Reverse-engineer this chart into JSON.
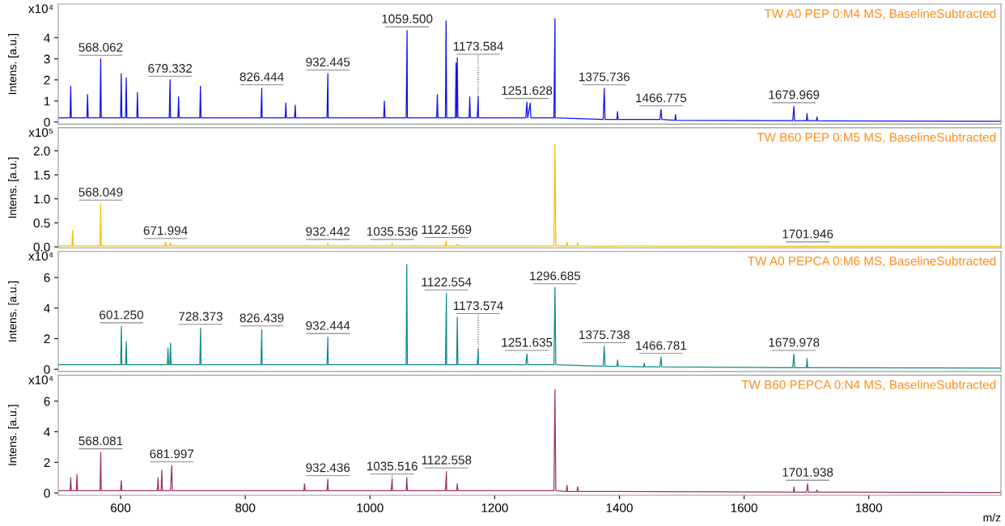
{
  "chart_data": [
    {
      "type": "line",
      "title": "TW A0 PEP 0:M4 MS, BaselineSubtracted",
      "ylabel": "Intens. [a.u.]",
      "tick_labels": "y",
      "xlim": [
        500,
        2012
      ],
      "ylim": [
        -0.1,
        5.6
      ],
      "yticks": [
        0,
        1,
        2,
        3,
        4
      ],
      "annotations": [
        "x10⁴",
        {
          "text": "568.062",
          "x": 568.062,
          "y": 3.0
        },
        {
          "text": "679.332",
          "x": 679.332,
          "y": 2.0
        },
        {
          "text": "826.444",
          "x": 826.444,
          "y": 1.6
        },
        {
          "text": "932.445",
          "x": 932.445,
          "y": 2.3
        },
        {
          "text": "1059.500",
          "x": 1059.5,
          "y": 4.35
        },
        {
          "text": "1173.584",
          "x": 1173.584,
          "y": 1.2
        },
        {
          "text": "1251.628",
          "x": 1251.628,
          "y": 0.95
        },
        {
          "text": "1375.736",
          "x": 1375.736,
          "y": 1.6
        },
        {
          "text": "1466.775",
          "x": 1466.775,
          "y": 0.6
        },
        {
          "text": "1679.969",
          "x": 1679.969,
          "y": 0.75
        }
      ],
      "x": [
        500,
        519,
        520,
        521,
        546,
        547,
        548,
        567,
        568.062,
        569,
        600,
        601,
        602,
        608,
        609,
        610,
        626,
        627,
        628,
        678,
        679.332,
        680,
        692,
        693,
        694,
        727,
        728,
        729,
        825,
        826.444,
        827,
        864,
        865,
        866,
        879,
        880,
        881,
        931,
        932.445,
        933,
        1022,
        1023,
        1024,
        1058,
        1059.5,
        1060,
        1107,
        1108,
        1109,
        1121,
        1122,
        1123,
        1137,
        1138,
        1139,
        1140,
        1141,
        1159,
        1160,
        1161,
        1172,
        1173.584,
        1174,
        1250,
        1251.628,
        1253,
        1257,
        1258,
        1295,
        1296.685,
        1297,
        1374,
        1375.736,
        1377,
        1396,
        1397,
        1398,
        1465,
        1466.775,
        1468,
        1489,
        1490,
        1491,
        1678,
        1679.969,
        1681,
        1700,
        1701,
        1702,
        1716,
        1717,
        1718,
        2012
      ],
      "series": [
        {
          "color": "#1010f0",
          "values": [
            0.2,
            0.2,
            1.7,
            0.2,
            0.2,
            1.3,
            0.2,
            0.2,
            3.0,
            0.2,
            0.2,
            2.3,
            0.2,
            0.2,
            2.1,
            0.2,
            0.2,
            1.4,
            0.2,
            0.2,
            2.0,
            0.2,
            0.2,
            1.2,
            0.2,
            0.2,
            1.7,
            0.2,
            0.2,
            1.6,
            0.2,
            0.2,
            0.9,
            0.2,
            0.2,
            0.8,
            0.2,
            0.2,
            2.3,
            0.2,
            0.2,
            1.0,
            0.2,
            0.2,
            4.35,
            0.2,
            0.2,
            1.3,
            0.2,
            0.2,
            4.8,
            0.2,
            0.2,
            2.8,
            0.2,
            3.05,
            0.2,
            0.2,
            1.2,
            0.2,
            0.2,
            1.2,
            0.2,
            0.2,
            0.95,
            0.2,
            0.9,
            0.2,
            0.2,
            4.9,
            0.2,
            0.12,
            1.6,
            0.12,
            0.12,
            0.5,
            0.12,
            0.12,
            0.6,
            0.12,
            0.08,
            0.35,
            0.08,
            0.06,
            0.75,
            0.06,
            0.06,
            0.4,
            0.06,
            0.06,
            0.25,
            0.06,
            0.04
          ]
        }
      ]
    },
    {
      "type": "line",
      "title": "TW B60 PEP 0:M5 MS, BaselineSubtracted",
      "ylabel": "Intens. [a.u.]",
      "tick_labels": "y",
      "xlim": [
        500,
        2012
      ],
      "ylim": [
        -0.02,
        2.48
      ],
      "yticks": [
        {
          "value": 0,
          "label": "0.0"
        },
        0.5,
        {
          "value": 1,
          "label": "1.0"
        },
        1.5,
        {
          "value": 2,
          "label": "2.0"
        }
      ],
      "annotations": [
        "x10⁵",
        {
          "text": "568.049",
          "x": 568.049,
          "y": 0.9
        },
        {
          "text": "671.994",
          "x": 671.994,
          "y": 0.1
        },
        {
          "text": "932.442",
          "x": 932.442,
          "y": 0.08
        },
        {
          "text": "1035.536",
          "x": 1035.536,
          "y": 0.08
        },
        {
          "text": "1122.569",
          "x": 1122.569,
          "y": 0.12
        },
        {
          "text": "1701.946",
          "x": 1701.946,
          "y": 0.03
        }
      ],
      "x": [
        500,
        522,
        523,
        524,
        567,
        568.049,
        569,
        671,
        671.994,
        673,
        679,
        680,
        681,
        931,
        932.442,
        933,
        1035,
        1035.536,
        1036,
        1121,
        1122.569,
        1123,
        1139,
        1140,
        1141,
        1295,
        1296.685,
        1298,
        1315,
        1316,
        1317,
        1332,
        1333,
        1334,
        1700,
        1701.946,
        1703,
        2012
      ],
      "series": [
        {
          "color": "#f5c000",
          "values": [
            0.02,
            0.02,
            0.34,
            0.02,
            0.02,
            0.9,
            0.02,
            0.02,
            0.1,
            0.02,
            0.02,
            0.08,
            0.02,
            0.02,
            0.08,
            0.02,
            0.02,
            0.08,
            0.02,
            0.02,
            0.12,
            0.02,
            0.02,
            0.06,
            0.02,
            0.02,
            2.13,
            0.02,
            0.02,
            0.1,
            0.02,
            0.02,
            0.09,
            0.02,
            0.01,
            0.03,
            0.01,
            0.01
          ]
        }
      ]
    },
    {
      "type": "line",
      "title": "TW A0 PEPCA 0:M6 MS, BaselineSubtracted",
      "ylabel": "Intens. [a.u.]",
      "tick_labels": "y",
      "xlim": [
        500,
        2012
      ],
      "ylim": [
        -0.15,
        7.7
      ],
      "yticks": [
        0,
        2,
        4,
        6
      ],
      "annotations": [
        "x10⁴",
        {
          "text": "601.250",
          "x": 601.25,
          "y": 2.8
        },
        {
          "text": "728.373",
          "x": 728.373,
          "y": 2.7
        },
        {
          "text": "826.439",
          "x": 826.439,
          "y": 2.6
        },
        {
          "text": "932.444",
          "x": 932.444,
          "y": 2.1
        },
        {
          "text": "1122.554",
          "x": 1122.554,
          "y": 4.95
        },
        {
          "text": "1173.574",
          "x": 1173.574,
          "y": 1.3
        },
        {
          "text": "1251.635",
          "x": 1251.635,
          "y": 1.0
        },
        {
          "text": "1296.685",
          "x": 1296.685,
          "y": 5.35
        },
        {
          "text": "1375.738",
          "x": 1375.738,
          "y": 1.5
        },
        {
          "text": "1466.781",
          "x": 1466.781,
          "y": 0.8
        },
        {
          "text": "1679.978",
          "x": 1679.978,
          "y": 1.0
        }
      ],
      "x": [
        500,
        600,
        601.25,
        602,
        608,
        609,
        610,
        675,
        676,
        677,
        679,
        680,
        681,
        727,
        728.373,
        729,
        825,
        826.439,
        827,
        931,
        932.444,
        933,
        1058,
        1059,
        1060,
        1121,
        1122.554,
        1123,
        1139,
        1140,
        1141,
        1172,
        1173.574,
        1174,
        1250,
        1251.635,
        1253,
        1295,
        1296.685,
        1298,
        1374,
        1375.738,
        1377,
        1396,
        1397,
        1398,
        1439,
        1440,
        1441,
        1465,
        1466.781,
        1468,
        1678,
        1679.978,
        1681,
        1700,
        1701,
        1702,
        2012
      ],
      "series": [
        {
          "color": "#128a8a",
          "values": [
            0.3,
            0.3,
            2.8,
            0.3,
            0.3,
            1.8,
            0.3,
            0.3,
            1.4,
            0.3,
            0.3,
            1.7,
            0.3,
            0.3,
            2.7,
            0.3,
            0.3,
            2.6,
            0.3,
            0.3,
            2.1,
            0.3,
            0.3,
            6.85,
            0.3,
            0.3,
            4.95,
            0.3,
            0.3,
            3.4,
            0.3,
            0.3,
            1.3,
            0.3,
            0.3,
            1.0,
            0.3,
            0.3,
            5.35,
            0.3,
            0.2,
            1.5,
            0.2,
            0.2,
            0.6,
            0.2,
            0.15,
            0.4,
            0.15,
            0.15,
            0.8,
            0.15,
            0.1,
            1.0,
            0.1,
            0.1,
            0.7,
            0.1,
            0.08
          ]
        }
      ]
    },
    {
      "type": "line",
      "title": "TW B60 PEPCA 0:N4 MS, BaselineSubtracted",
      "ylabel": "Intens. [a.u.]",
      "xlabel": "m/z",
      "xlim": [
        500,
        2012
      ],
      "ylim": [
        -0.15,
        7.7
      ],
      "xticks": [
        600,
        800,
        1000,
        1200,
        1400,
        1600,
        1800
      ],
      "yticks": [
        0,
        2,
        4,
        6
      ],
      "annotations": [
        "x10⁴",
        {
          "text": "568.081",
          "x": 568.081,
          "y": 2.65
        },
        {
          "text": "681.997",
          "x": 681.997,
          "y": 1.8
        },
        {
          "text": "932.436",
          "x": 932.436,
          "y": 0.9
        },
        {
          "text": "1035.516",
          "x": 1035.516,
          "y": 0.9
        },
        {
          "text": "1122.558",
          "x": 1122.558,
          "y": 1.4
        },
        {
          "text": "1701.938",
          "x": 1701.938,
          "y": 0.6
        }
      ],
      "x": [
        500,
        519,
        520,
        521,
        529,
        530,
        531,
        567,
        568.081,
        569,
        600,
        601,
        602,
        659,
        660,
        661,
        665,
        666,
        667,
        680,
        681.997,
        683,
        894,
        895,
        896,
        931,
        932.436,
        933,
        1034,
        1035.516,
        1036,
        1058,
        1059,
        1060,
        1121,
        1122.558,
        1123,
        1139,
        1140,
        1141,
        1295,
        1296.685,
        1298,
        1315,
        1316,
        1317,
        1332,
        1333,
        1334,
        1679,
        1680,
        1681,
        1700,
        1701.938,
        1703,
        1716,
        1717,
        1718,
        2012
      ],
      "series": [
        {
          "color": "#a0306a",
          "values": [
            0.15,
            0.15,
            1.0,
            0.15,
            0.15,
            1.2,
            0.15,
            0.15,
            2.65,
            0.15,
            0.15,
            0.8,
            0.15,
            0.15,
            1.0,
            0.15,
            0.15,
            1.5,
            0.15,
            0.15,
            1.8,
            0.15,
            0.15,
            0.6,
            0.15,
            0.15,
            0.9,
            0.15,
            0.15,
            0.9,
            0.15,
            0.15,
            1.0,
            0.15,
            0.15,
            1.4,
            0.15,
            0.15,
            0.6,
            0.15,
            0.15,
            6.75,
            0.15,
            0.1,
            0.5,
            0.1,
            0.1,
            0.4,
            0.1,
            0.05,
            0.4,
            0.05,
            0.05,
            0.6,
            0.05,
            0.05,
            0.2,
            0.05,
            0.03
          ]
        }
      ]
    }
  ]
}
